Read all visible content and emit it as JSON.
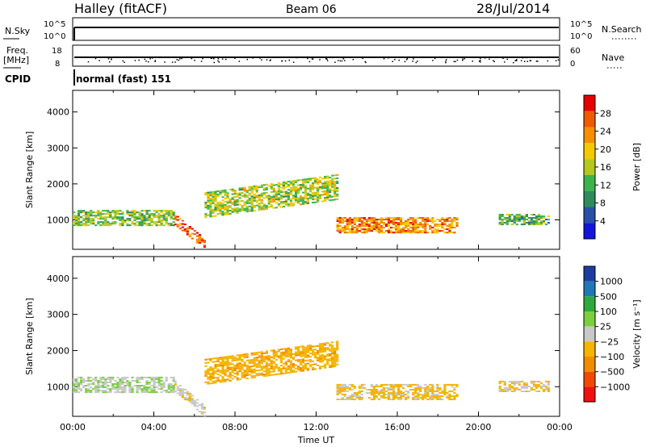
{
  "header": {
    "station": "Halley (fitACF)",
    "beam": "Beam 06",
    "date": "28/Jul/2014"
  },
  "panels": {
    "nsky": {
      "label": "N.Sky",
      "right_label": "N.Search",
      "ticks": [
        "10^5",
        "10^0"
      ]
    },
    "freq": {
      "label_line1": "Freq.",
      "label_line2": "[MHz]",
      "ticks": [
        "18",
        "8"
      ],
      "right_label": "Nave",
      "right_ticks": [
        "60",
        "0"
      ]
    },
    "cpid": {
      "label": "CPID",
      "text": "normal (fast) 151"
    }
  },
  "colors": {
    "power": [
      "#1414dc",
      "#2850a8",
      "#2e8b5a",
      "#3cb44b",
      "#b4c81e",
      "#f5c800",
      "#f59000",
      "#f05a00",
      "#e60000"
    ],
    "velocity": [
      "#f01010",
      "#f04a00",
      "#f08c00",
      "#f5b400",
      "#c8c8c8",
      "#7cd040",
      "#2eaa3c",
      "#1f78b4",
      "#1e3ca0"
    ],
    "accent": "#000000"
  },
  "chart_data": [
    {
      "type": "heatmap",
      "title": "",
      "xlabel": "",
      "ylabel": "Slant Range [km]",
      "x_ticks": [
        "00:00",
        "04:00",
        "08:00",
        "12:00",
        "16:00",
        "20:00",
        "00:00"
      ],
      "y_ticks": [
        "1000",
        "2000",
        "3000",
        "4000"
      ],
      "ylim": [
        180,
        4600
      ],
      "colorbar": {
        "label": "Power [dB]",
        "ticks": [
          "28",
          "24",
          "20",
          "16",
          "12",
          "8",
          "4"
        ],
        "range": [
          0,
          32
        ]
      },
      "features": [
        {
          "name": "near-range band",
          "t_start": 0.0,
          "t_end": 5.0,
          "range_center": 1050,
          "range_width": 450,
          "level": 14
        },
        {
          "name": "dawn descending patch",
          "t_start": 5.0,
          "t_end": 6.5,
          "range_center": 450,
          "range_width": 300,
          "level": 26
        },
        {
          "name": "morning rising band",
          "t_start": 6.5,
          "t_end": 13.0,
          "range_center": 1400,
          "range_width": 700,
          "level": 16
        },
        {
          "name": "afternoon intense band",
          "t_start": 13.0,
          "t_end": 19.0,
          "range_center": 850,
          "range_width": 450,
          "level": 24
        },
        {
          "name": "evening patch",
          "t_start": 21.0,
          "t_end": 23.5,
          "range_center": 1000,
          "range_width": 300,
          "level": 12
        }
      ]
    },
    {
      "type": "heatmap",
      "title": "",
      "xlabel": "Time UT",
      "ylabel": "Slant Range [km]",
      "x_ticks": [
        "00:00",
        "04:00",
        "08:00",
        "12:00",
        "16:00",
        "20:00",
        "00:00"
      ],
      "y_ticks": [
        "1000",
        "2000",
        "3000",
        "4000"
      ],
      "ylim": [
        180,
        4600
      ],
      "colorbar": {
        "label": "Velocity [m s⁻¹]",
        "ticks": [
          "1000",
          "500",
          "100",
          "25",
          "−25",
          "−100",
          "−500",
          "−1000"
        ],
        "range": [
          -1200,
          1200
        ]
      },
      "features": [
        {
          "name": "near-range band",
          "t_start": 0.0,
          "t_end": 5.0,
          "range_center": 1050,
          "range_width": 450,
          "velocity": 100
        },
        {
          "name": "dawn descending patch",
          "t_start": 5.0,
          "t_end": 6.5,
          "range_center": 450,
          "range_width": 300,
          "velocity": -50
        },
        {
          "name": "morning rising band",
          "t_start": 6.5,
          "t_end": 13.0,
          "range_center": 1400,
          "range_width": 700,
          "velocity": -300
        },
        {
          "name": "afternoon band",
          "t_start": 13.0,
          "t_end": 19.0,
          "range_center": 850,
          "range_width": 450,
          "velocity": -200
        },
        {
          "name": "evening patch",
          "t_start": 21.0,
          "t_end": 23.5,
          "range_center": 1000,
          "range_width": 300,
          "velocity": -150
        }
      ]
    }
  ]
}
